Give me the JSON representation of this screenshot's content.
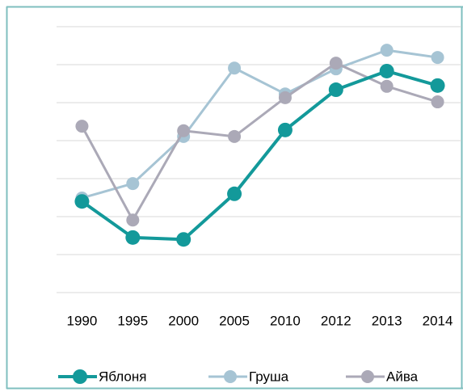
{
  "chart_data": {
    "type": "line",
    "categories": [
      "1990",
      "1995",
      "2000",
      "2005",
      "2010",
      "2012",
      "2013",
      "2014"
    ],
    "series": [
      {
        "name": "Яблоня",
        "color": "#13999a",
        "values": [
          2.4,
          1.45,
          1.4,
          2.6,
          4.28,
          5.34,
          5.83,
          5.45
        ]
      },
      {
        "name": "Груша",
        "color": "#a6c4d4",
        "values": [
          2.49,
          2.87,
          4.11,
          5.91,
          5.23,
          5.89,
          6.38,
          6.19
        ]
      },
      {
        "name": "Айва",
        "color": "#aba9b7",
        "values": [
          4.38,
          1.91,
          4.26,
          4.11,
          5.13,
          6.04,
          5.43,
          5.02
        ]
      }
    ],
    "ylim": [
      0,
      7
    ],
    "yticks": [
      0,
      1,
      2,
      3,
      4,
      5,
      6,
      7
    ],
    "grid": true,
    "legend": "bottom"
  }
}
